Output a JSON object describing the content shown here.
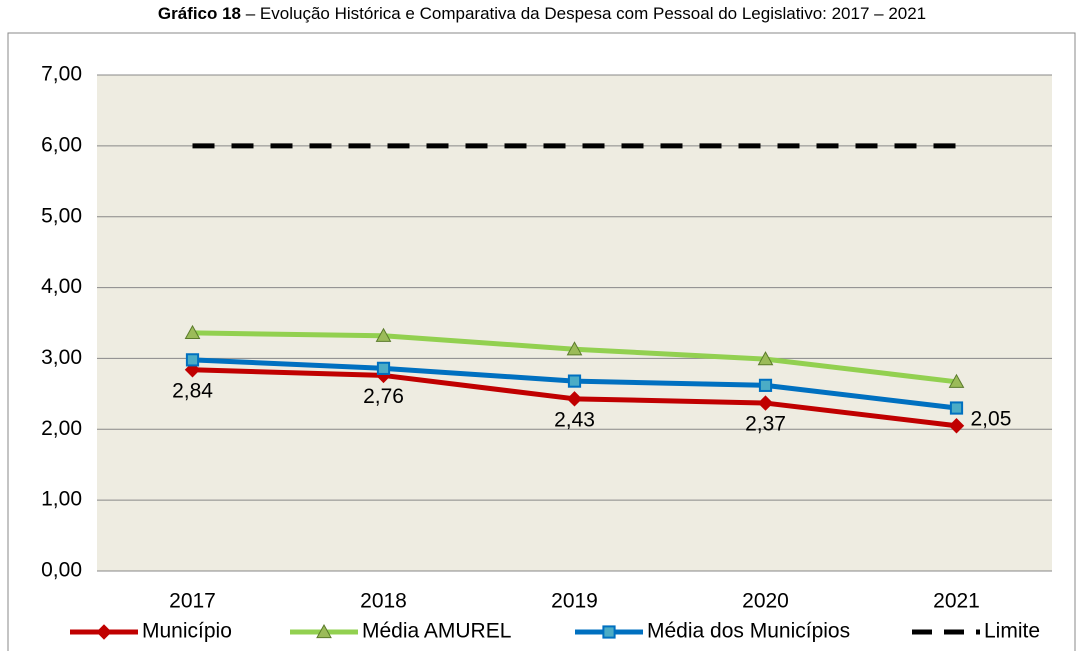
{
  "chart_data": {
    "type": "line",
    "title_bold": "Gráfico 18",
    "title": "– Evolução Histórica e Comparativa da Despesa com Pessoal do Legislativo: 2017 – 2021",
    "categories": [
      "2017",
      "2018",
      "2019",
      "2020",
      "2021"
    ],
    "series": [
      {
        "name": "Município",
        "color": "#c00000",
        "marker": "diamond",
        "values": [
          2.84,
          2.76,
          2.43,
          2.37,
          2.05
        ],
        "value_labels": [
          "2,84",
          "2,76",
          "2,43",
          "2,37",
          "2,05"
        ]
      },
      {
        "name": "Média AMUREL",
        "color": "#92d050",
        "marker": "triangle",
        "values": [
          3.36,
          3.32,
          3.13,
          2.99,
          2.67
        ]
      },
      {
        "name": "Média dos Municípios",
        "color": "#0070c0",
        "marker": "square",
        "values": [
          2.98,
          2.86,
          2.68,
          2.62,
          2.3
        ]
      },
      {
        "name": "Limite",
        "color": "#000000",
        "dashed": true,
        "values": [
          6,
          6,
          6,
          6,
          6
        ]
      }
    ],
    "ylim": [
      0,
      7
    ],
    "yticks": [
      {
        "value": 0,
        "label": "0,00"
      },
      {
        "value": 1,
        "label": "1,00"
      },
      {
        "value": 2,
        "label": "2,00"
      },
      {
        "value": 3,
        "label": "3,00"
      },
      {
        "value": 4,
        "label": "4,00"
      },
      {
        "value": 5,
        "label": "5,00"
      },
      {
        "value": 6,
        "label": "6,00"
      },
      {
        "value": 7,
        "label": "7,00"
      }
    ],
    "grid": true,
    "legend": "bottom"
  }
}
